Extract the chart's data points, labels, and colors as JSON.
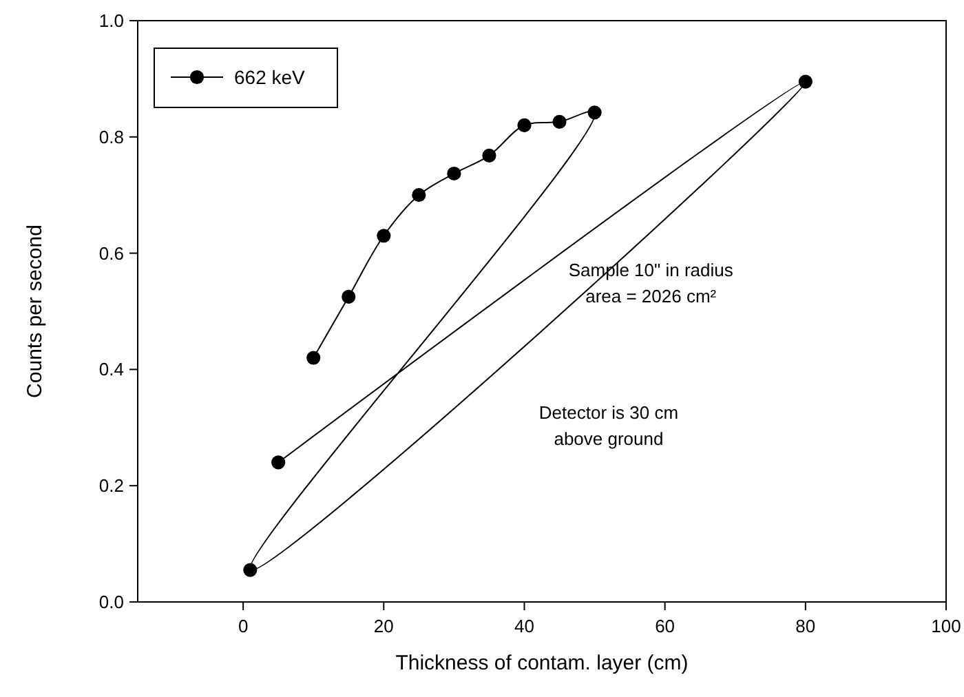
{
  "chart_data": {
    "type": "line",
    "xlabel": "Thickness of contam. layer (cm)",
    "ylabel": "Counts per second",
    "xlim": [
      -15,
      100
    ],
    "xticks": [
      0,
      20,
      40,
      60,
      80,
      100
    ],
    "ylim": [
      0,
      1
    ],
    "yticks": [
      {
        "value": 0,
        "label": "0.0"
      },
      {
        "value": 0.2,
        "label": "0.2"
      },
      {
        "value": 0.4,
        "label": "0.4"
      },
      {
        "value": 0.6,
        "label": "0.6"
      },
      {
        "value": 0.8,
        "label": "0.8"
      },
      {
        "value": 1,
        "label": "1.0"
      }
    ],
    "series": [
      {
        "name": "662 keV",
        "color": "#000000",
        "x": [
          10,
          15,
          20,
          25,
          30,
          35,
          40,
          45,
          50,
          1,
          80,
          5
        ],
        "values": [
          0.42,
          0.525,
          0.63,
          0.7,
          0.737,
          0.768,
          0.82,
          0.826,
          0.842,
          0.055,
          0.895,
          0.24
        ]
      }
    ],
    "marker": "circle",
    "legend": "top left",
    "grid": false,
    "annotations": [
      "Sample 10\" in radius\narea = 2026 cm²",
      "Detector is 30 cm\nabove ground"
    ]
  }
}
